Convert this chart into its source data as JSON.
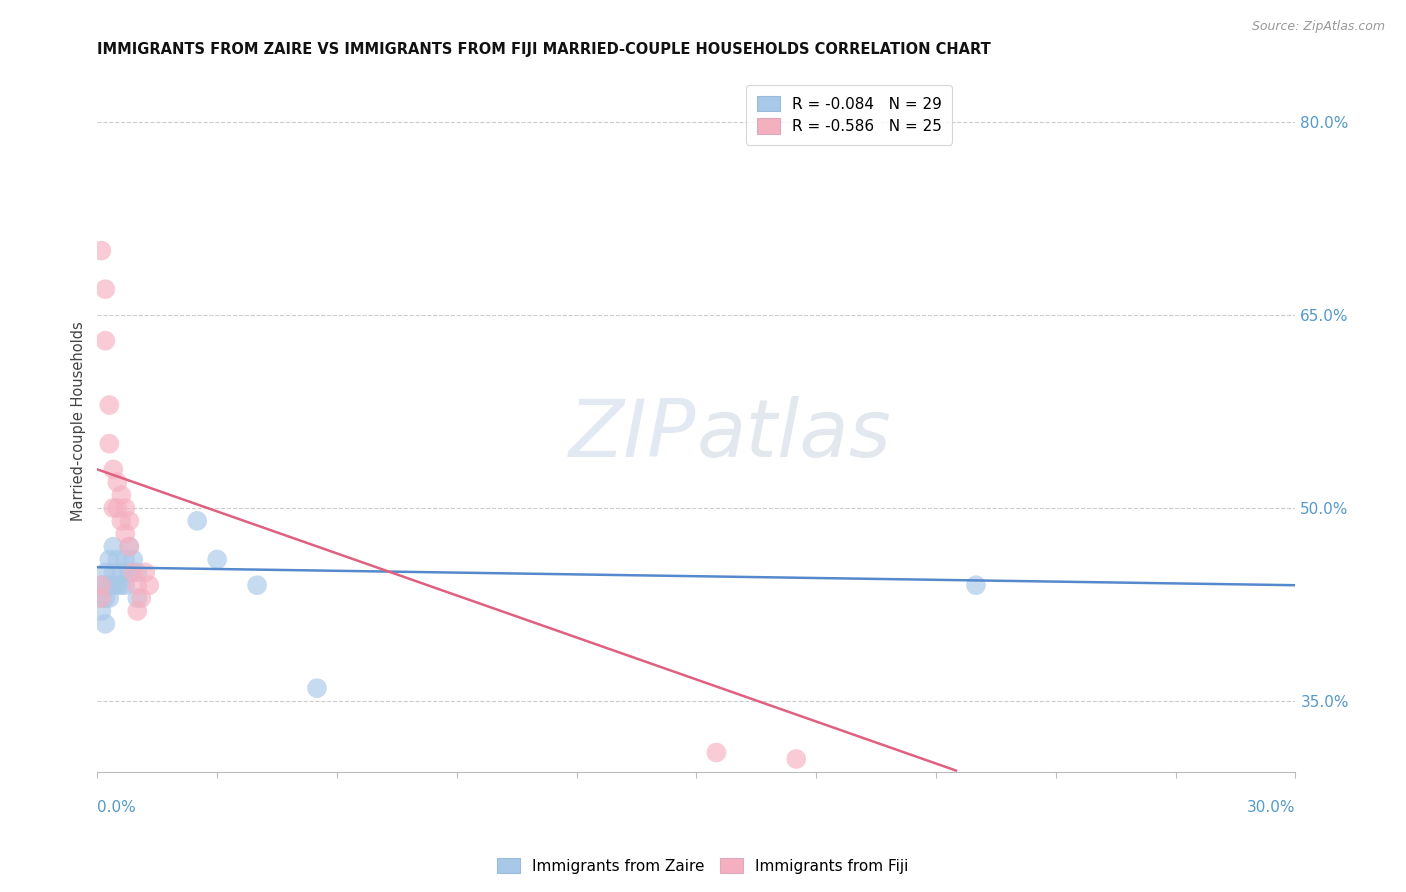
{
  "title": "IMMIGRANTS FROM ZAIRE VS IMMIGRANTS FROM FIJI MARRIED-COUPLE HOUSEHOLDS CORRELATION CHART",
  "source": "Source: ZipAtlas.com",
  "ylabel": "Married-couple Households",
  "legend_zaire": "R = -0.084   N = 29",
  "legend_fiji": "R = -0.586   N = 25",
  "zaire_color": "#a8c8e8",
  "fiji_color": "#f5b0c0",
  "zaire_line_color": "#5588cc",
  "fiji_line_color": "#e06080",
  "background_color": "#ffffff",
  "xmin": 0.0,
  "xmax": 0.3,
  "ymin": 0.295,
  "ymax": 0.84,
  "right_yticks": [
    0.8,
    0.65,
    0.5,
    0.35
  ],
  "grid_yticks": [
    0.8,
    0.65,
    0.5,
    0.35
  ],
  "zaire_points_x": [
    0.001,
    0.001,
    0.001,
    0.002,
    0.002,
    0.002,
    0.002,
    0.003,
    0.003,
    0.003,
    0.004,
    0.004,
    0.004,
    0.005,
    0.005,
    0.006,
    0.006,
    0.007,
    0.007,
    0.008,
    0.008,
    0.009,
    0.01,
    0.01,
    0.025,
    0.03,
    0.04,
    0.055,
    0.22
  ],
  "zaire_points_y": [
    0.44,
    0.43,
    0.42,
    0.45,
    0.44,
    0.43,
    0.41,
    0.46,
    0.44,
    0.43,
    0.47,
    0.45,
    0.44,
    0.46,
    0.44,
    0.45,
    0.44,
    0.46,
    0.44,
    0.47,
    0.45,
    0.46,
    0.45,
    0.43,
    0.49,
    0.46,
    0.44,
    0.36,
    0.44
  ],
  "fiji_points_x": [
    0.001,
    0.001,
    0.001,
    0.002,
    0.002,
    0.003,
    0.003,
    0.004,
    0.004,
    0.005,
    0.005,
    0.006,
    0.006,
    0.007,
    0.007,
    0.008,
    0.008,
    0.009,
    0.01,
    0.01,
    0.011,
    0.012,
    0.013,
    0.155,
    0.175
  ],
  "fiji_points_y": [
    0.44,
    0.43,
    0.7,
    0.67,
    0.63,
    0.58,
    0.55,
    0.53,
    0.5,
    0.52,
    0.5,
    0.51,
    0.49,
    0.5,
    0.48,
    0.49,
    0.47,
    0.45,
    0.44,
    0.42,
    0.43,
    0.45,
    0.44,
    0.31,
    0.305
  ],
  "zaire_line_x": [
    0.0,
    0.3
  ],
  "zaire_line_y": [
    0.454,
    0.44
  ],
  "fiji_line_x": [
    0.0,
    0.215
  ],
  "fiji_line_y": [
    0.53,
    0.296
  ]
}
